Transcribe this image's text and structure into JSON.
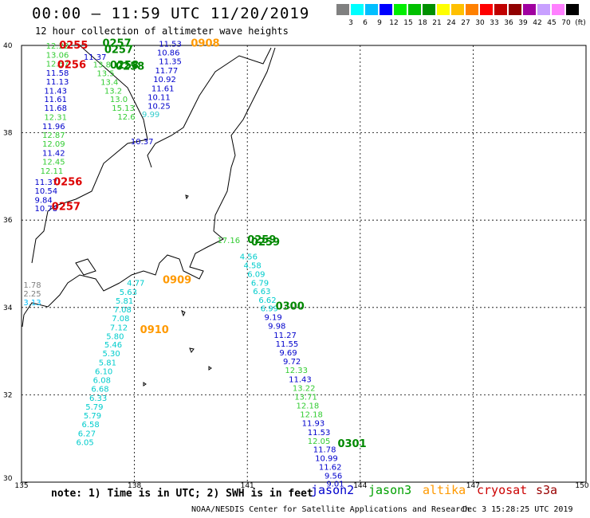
{
  "title": "00:00 – 11:59 UTC 11/20/2019",
  "subtitle": "12 hour collection of altimeter wave heights",
  "colorbar": {
    "colors": [
      "#808080",
      "#00ffff",
      "#00bfff",
      "#0000ff",
      "#00ee00",
      "#00c000",
      "#009000",
      "#ffff00",
      "#ffc000",
      "#ff8000",
      "#ff0000",
      "#c00000",
      "#900000",
      "#a000a0",
      "#c8a0ff",
      "#ff80ff",
      "#000000"
    ],
    "labels": [
      "3",
      "6",
      "9",
      "12",
      "15",
      "18",
      "21",
      "24",
      "27",
      "30",
      "33",
      "36",
      "39",
      "42",
      "45",
      "70",
      "(ft)"
    ]
  },
  "axes": {
    "lon_labels": [
      "135",
      "138",
      "141",
      "144",
      "147",
      "150"
    ],
    "lat_labels": [
      "40",
      "38",
      "36",
      "34",
      "32",
      "30"
    ]
  },
  "note": "note: 1) Time is in UTC; 2) SWH is in feet",
  "legend": [
    {
      "name": "jason2",
      "color": "#0000cc"
    },
    {
      "name": "jason3",
      "color": "#00a000"
    },
    {
      "name": "altika",
      "color": "#ff9900"
    },
    {
      "name": "cryosat",
      "color": "#cc0000"
    },
    {
      "name": "s3a",
      "color": "#990000"
    }
  ],
  "credit": "NOAA/NESDIS Center for Satellite Applications and Research",
  "generated": "Dec  3 15:28:25 UTC 2019",
  "observations": [
    {
      "text": "12.22",
      "lon": 135.65,
      "lat": 39.93,
      "color": "#33cc33"
    },
    {
      "text": "13.06",
      "lon": 135.65,
      "lat": 39.72,
      "color": "#33cc33"
    },
    {
      "text": "12.57",
      "lon": 135.65,
      "lat": 39.52,
      "color": "#33cc33"
    },
    {
      "text": "11.58",
      "lon": 135.65,
      "lat": 39.31,
      "color": "#0000cc"
    },
    {
      "text": "11.13",
      "lon": 135.65,
      "lat": 39.11,
      "color": "#0000cc"
    },
    {
      "text": "11.43",
      "lon": 135.6,
      "lat": 38.9,
      "color": "#0000cc"
    },
    {
      "text": "11.61",
      "lon": 135.6,
      "lat": 38.7,
      "color": "#0000cc"
    },
    {
      "text": "11.68",
      "lon": 135.6,
      "lat": 38.5,
      "color": "#0000cc"
    },
    {
      "text": "12.31",
      "lon": 135.6,
      "lat": 38.29,
      "color": "#33cc33"
    },
    {
      "text": "11.96",
      "lon": 135.55,
      "lat": 38.08,
      "color": "#0000cc"
    },
    {
      "text": "12.87",
      "lon": 135.55,
      "lat": 37.88,
      "color": "#33cc33"
    },
    {
      "text": "12.09",
      "lon": 135.55,
      "lat": 37.68,
      "color": "#33cc33"
    },
    {
      "text": "11.42",
      "lon": 135.55,
      "lat": 37.47,
      "color": "#0000cc"
    },
    {
      "text": "12.45",
      "lon": 135.55,
      "lat": 37.27,
      "color": "#33cc33"
    },
    {
      "text": "12.11",
      "lon": 135.5,
      "lat": 37.06,
      "color": "#33cc33"
    },
    {
      "text": "11.37",
      "lon": 135.35,
      "lat": 36.81,
      "color": "#0000cc"
    },
    {
      "text": "10.54",
      "lon": 135.35,
      "lat": 36.61,
      "color": "#0000cc"
    },
    {
      "text": "9.84",
      "lon": 135.35,
      "lat": 36.4,
      "color": "#0000cc"
    },
    {
      "text": "10.78",
      "lon": 135.35,
      "lat": 36.2,
      "color": "#0000cc"
    },
    {
      "text": "0255",
      "lon": 136.0,
      "lat": 39.93,
      "color": "#dd0000"
    },
    {
      "text": "0256",
      "lon": 135.95,
      "lat": 39.48,
      "color": "#dd0000"
    },
    {
      "text": "0256",
      "lon": 135.85,
      "lat": 36.8,
      "color": "#dd0000"
    },
    {
      "text": "0257",
      "lon": 135.8,
      "lat": 36.23,
      "color": "#dd0000"
    },
    {
      "text": "0257",
      "lon": 137.15,
      "lat": 39.97,
      "color": "#008800"
    },
    {
      "text": "0257",
      "lon": 137.2,
      "lat": 39.83,
      "color": "#008800"
    },
    {
      "text": "0258",
      "lon": 137.35,
      "lat": 39.47,
      "color": "#008800"
    },
    {
      "text": "0258",
      "lon": 137.5,
      "lat": 39.44,
      "color": "#008800"
    },
    {
      "text": "11.37",
      "lon": 136.65,
      "lat": 39.67,
      "color": "#0000cc"
    },
    {
      "text": "13.8",
      "lon": 136.9,
      "lat": 39.5,
      "color": "#33cc33"
    },
    {
      "text": "13.5",
      "lon": 137.0,
      "lat": 39.3,
      "color": "#33cc33"
    },
    {
      "text": "13.4",
      "lon": 137.1,
      "lat": 39.1,
      "color": "#33cc33"
    },
    {
      "text": "13.2",
      "lon": 137.2,
      "lat": 38.9,
      "color": "#33cc33"
    },
    {
      "text": "13.0",
      "lon": 137.35,
      "lat": 38.7,
      "color": "#33cc33"
    },
    {
      "text": "15.13",
      "lon": 137.4,
      "lat": 38.5,
      "color": "#33cc33"
    },
    {
      "text": "12.6",
      "lon": 137.55,
      "lat": 38.3,
      "color": "#33cc33"
    },
    {
      "text": "11.53",
      "lon": 138.65,
      "lat": 39.97,
      "color": "#0000cc"
    },
    {
      "text": "10.86",
      "lon": 138.6,
      "lat": 39.77,
      "color": "#0000cc"
    },
    {
      "text": "11.35",
      "lon": 138.65,
      "lat": 39.57,
      "color": "#0000cc"
    },
    {
      "text": "11.77",
      "lon": 138.55,
      "lat": 39.36,
      "color": "#0000cc"
    },
    {
      "text": "10.92",
      "lon": 138.5,
      "lat": 39.16,
      "color": "#0000cc"
    },
    {
      "text": "11.61",
      "lon": 138.45,
      "lat": 38.95,
      "color": "#0000cc"
    },
    {
      "text": "10.11",
      "lon": 138.35,
      "lat": 38.75,
      "color": "#0000cc"
    },
    {
      "text": "10.25",
      "lon": 138.35,
      "lat": 38.55,
      "color": "#0000cc"
    },
    {
      "text": "9.99",
      "lon": 138.2,
      "lat": 38.36,
      "color": "#33cccc"
    },
    {
      "text": "10.37",
      "lon": 137.9,
      "lat": 37.74,
      "color": "#0000cc"
    },
    {
      "text": "0908",
      "lon": 139.5,
      "lat": 39.97,
      "color": "#ff9900"
    },
    {
      "text": "17.16",
      "lon": 140.2,
      "lat": 35.47,
      "color": "#33cc33"
    },
    {
      "text": "0259",
      "lon": 141.0,
      "lat": 35.47,
      "color": "#008800"
    },
    {
      "text": "0259",
      "lon": 141.1,
      "lat": 35.42,
      "color": "#008800"
    },
    {
      "text": "4.56",
      "lon": 140.8,
      "lat": 35.1,
      "color": "#00cccc"
    },
    {
      "text": "4.58",
      "lon": 140.9,
      "lat": 34.9,
      "color": "#00cccc"
    },
    {
      "text": "6.09",
      "lon": 141.0,
      "lat": 34.7,
      "color": "#00cccc"
    },
    {
      "text": "6.79",
      "lon": 141.1,
      "lat": 34.5,
      "color": "#00cccc"
    },
    {
      "text": "6.63",
      "lon": 141.15,
      "lat": 34.31,
      "color": "#00cccc"
    },
    {
      "text": "6.62",
      "lon": 141.3,
      "lat": 34.11,
      "color": "#00cccc"
    },
    {
      "text": "6.99",
      "lon": 141.35,
      "lat": 33.91,
      "color": "#00cccc"
    },
    {
      "text": "9.19",
      "lon": 141.45,
      "lat": 33.71,
      "color": "#0000cc"
    },
    {
      "text": "9.98",
      "lon": 141.55,
      "lat": 33.51,
      "color": "#0000cc"
    },
    {
      "text": "11.27",
      "lon": 141.7,
      "lat": 33.3,
      "color": "#0000cc"
    },
    {
      "text": "11.55",
      "lon": 141.75,
      "lat": 33.1,
      "color": "#0000cc"
    },
    {
      "text": "9.69",
      "lon": 141.85,
      "lat": 32.9,
      "color": "#0000cc"
    },
    {
      "text": "9.72",
      "lon": 141.95,
      "lat": 32.7,
      "color": "#0000cc"
    },
    {
      "text": "12.33",
      "lon": 142.0,
      "lat": 32.5,
      "color": "#33cc33"
    },
    {
      "text": "11.43",
      "lon": 142.1,
      "lat": 32.29,
      "color": "#0000cc"
    },
    {
      "text": "13.22",
      "lon": 142.2,
      "lat": 32.09,
      "color": "#33cc33"
    },
    {
      "text": "13.71",
      "lon": 142.25,
      "lat": 31.89,
      "color": "#33cc33"
    },
    {
      "text": "12.18",
      "lon": 142.3,
      "lat": 31.69,
      "color": "#33cc33"
    },
    {
      "text": "12.18",
      "lon": 142.4,
      "lat": 31.49,
      "color": "#33cc33"
    },
    {
      "text": "11.93",
      "lon": 142.45,
      "lat": 31.29,
      "color": "#0000cc"
    },
    {
      "text": "11.53",
      "lon": 142.6,
      "lat": 31.08,
      "color": "#0000cc"
    },
    {
      "text": "12.05",
      "lon": 142.6,
      "lat": 30.88,
      "color": "#33cc33"
    },
    {
      "text": "11.78",
      "lon": 142.75,
      "lat": 30.68,
      "color": "#0000cc"
    },
    {
      "text": "10.99",
      "lon": 142.8,
      "lat": 30.48,
      "color": "#0000cc"
    },
    {
      "text": "11.62",
      "lon": 142.9,
      "lat": 30.28,
      "color": "#0000cc"
    },
    {
      "text": "9.56",
      "lon": 143.05,
      "lat": 30.08,
      "color": "#0000cc"
    },
    {
      "text": "9.01",
      "lon": 143.1,
      "lat": 29.9,
      "color": "#0000cc"
    },
    {
      "text": "0300",
      "lon": 141.75,
      "lat": 33.95,
      "color": "#008800"
    },
    {
      "text": "0301",
      "lon": 143.4,
      "lat": 30.8,
      "color": "#008800"
    },
    {
      "text": "4.77",
      "lon": 137.8,
      "lat": 34.5,
      "color": "#00cccc"
    },
    {
      "text": "5.63",
      "lon": 137.6,
      "lat": 34.29,
      "color": "#00cccc"
    },
    {
      "text": "5.81",
      "lon": 137.5,
      "lat": 34.09,
      "color": "#00cccc"
    },
    {
      "text": "7.08",
      "lon": 137.45,
      "lat": 33.89,
      "color": "#00cccc"
    },
    {
      "text": "7.08",
      "lon": 137.4,
      "lat": 33.69,
      "color": "#00cccc"
    },
    {
      "text": "7.12",
      "lon": 137.35,
      "lat": 33.48,
      "color": "#00cccc"
    },
    {
      "text": "5.80",
      "lon": 137.25,
      "lat": 33.28,
      "color": "#00cccc"
    },
    {
      "text": "5.46",
      "lon": 137.2,
      "lat": 33.08,
      "color": "#00cccc"
    },
    {
      "text": "5.30",
      "lon": 137.15,
      "lat": 32.88,
      "color": "#00cccc"
    },
    {
      "text": "5.81",
      "lon": 137.05,
      "lat": 32.67,
      "color": "#00cccc"
    },
    {
      "text": "6.10",
      "lon": 136.95,
      "lat": 32.47,
      "color": "#00cccc"
    },
    {
      "text": "6.08",
      "lon": 136.9,
      "lat": 32.27,
      "color": "#00cccc"
    },
    {
      "text": "6.68",
      "lon": 136.85,
      "lat": 32.07,
      "color": "#00cccc"
    },
    {
      "text": "6.33",
      "lon": 136.8,
      "lat": 31.86,
      "color": "#00cccc"
    },
    {
      "text": "5.79",
      "lon": 136.7,
      "lat": 31.66,
      "color": "#00cccc"
    },
    {
      "text": "5.79",
      "lon": 136.65,
      "lat": 31.46,
      "color": "#00cccc"
    },
    {
      "text": "6.58",
      "lon": 136.6,
      "lat": 31.26,
      "color": "#00cccc"
    },
    {
      "text": "6.27",
      "lon": 136.5,
      "lat": 31.05,
      "color": "#00cccc"
    },
    {
      "text": "6.05",
      "lon": 136.45,
      "lat": 30.85,
      "color": "#00cccc"
    },
    {
      "text": "0909",
      "lon": 138.75,
      "lat": 34.55,
      "color": "#ff9900"
    },
    {
      "text": "0910",
      "lon": 138.15,
      "lat": 33.41,
      "color": "#ff9900"
    },
    {
      "text": "1.78",
      "lon": 135.05,
      "lat": 34.45,
      "color": "#808080"
    },
    {
      "text": "2.25",
      "lon": 135.05,
      "lat": 34.25,
      "color": "#808080"
    },
    {
      "text": "3.13",
      "lon": 135.05,
      "lat": 34.05,
      "color": "#00bfff"
    }
  ]
}
